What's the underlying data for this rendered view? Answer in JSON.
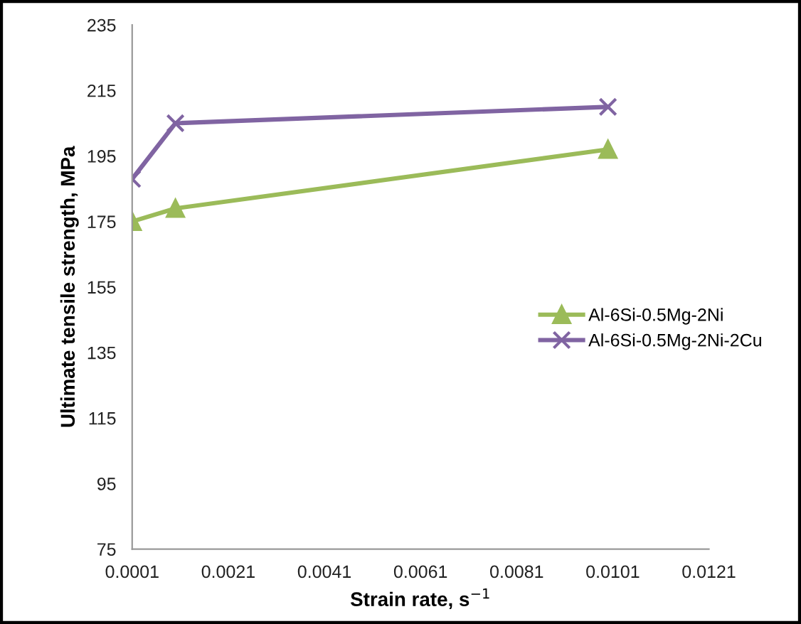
{
  "chart_data": {
    "type": "line",
    "xlabel": "Strain rate, s$^{−1}$",
    "ylabel": "Ultimate tensile strength, MPa",
    "x": [
      0.0001,
      0.001,
      0.01
    ],
    "series": [
      {
        "name": "Al-6Si-0.5Mg-2Ni",
        "color": "#9bbb59",
        "marker": "triangle",
        "values": [
          175,
          179,
          197
        ]
      },
      {
        "name": "Al-6Si-0.5Mg-2Ni-2Cu",
        "color": "#8064a2",
        "marker": "cross",
        "values": [
          188,
          205,
          210
        ]
      }
    ],
    "xlim": [
      0.0001,
      0.0121
    ],
    "xticks": [
      0.0001,
      0.0021,
      0.0041,
      0.0061,
      0.0081,
      0.0101,
      0.0121
    ],
    "ylim": [
      75,
      235
    ],
    "yticks": [
      75,
      95,
      115,
      135,
      155,
      175,
      195,
      215,
      235
    ],
    "grid": false,
    "legend": "right",
    "line_style": "solid"
  }
}
